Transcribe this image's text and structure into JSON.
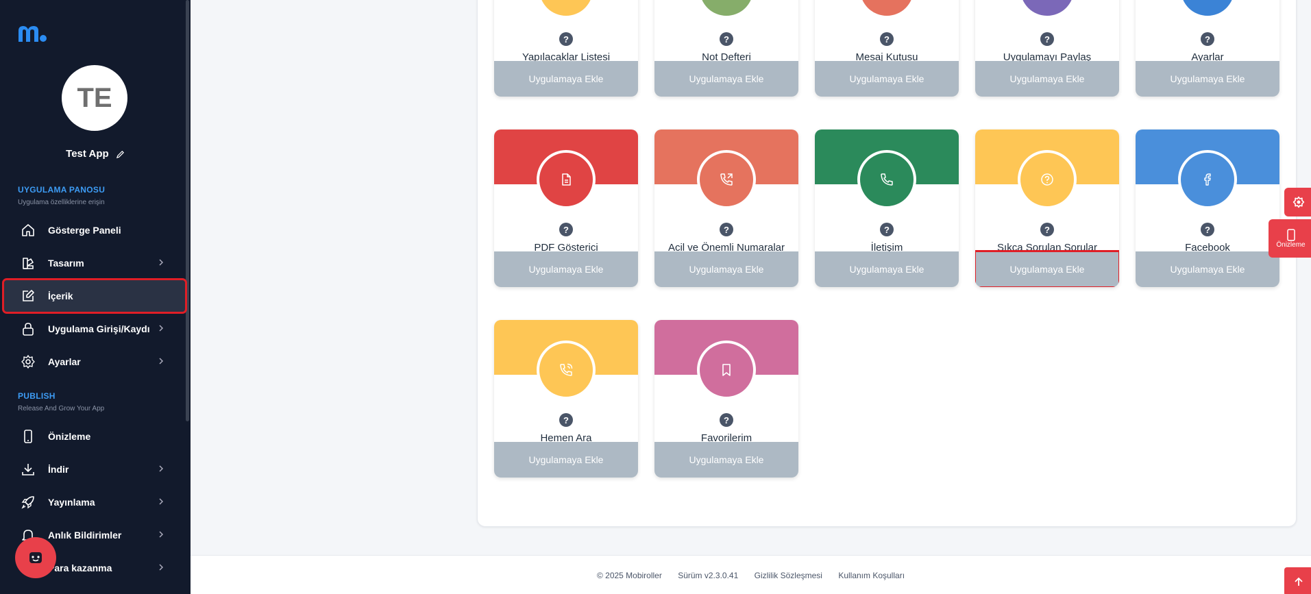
{
  "sidebar": {
    "avatar_initials": "TE",
    "app_name": "Test App",
    "section1": {
      "title": "UYGULAMA PANOSU",
      "subtitle": "Uygulama özelliklerine erişin"
    },
    "section2": {
      "title": "PUBLISH",
      "subtitle": "Release And Grow Your App"
    },
    "items": [
      {
        "label": "Gösterge Paneli",
        "icon": "home-icon",
        "chevron": false
      },
      {
        "label": "Tasarım",
        "icon": "design-icon",
        "chevron": true
      },
      {
        "label": "İçerik",
        "icon": "edit-icon",
        "chevron": false,
        "active": true
      },
      {
        "label": "Uygulama Girişi/Kaydı",
        "icon": "lock-icon",
        "chevron": true
      },
      {
        "label": "Ayarlar",
        "icon": "gear-icon",
        "chevron": true
      },
      {
        "label": "Önizleme",
        "icon": "phone-icon",
        "chevron": false
      },
      {
        "label": "İndir",
        "icon": "download-icon",
        "chevron": true
      },
      {
        "label": "Yayınlama",
        "icon": "rocket-icon",
        "chevron": true
      },
      {
        "label": "Anlık Bildirimler",
        "icon": "bell-icon",
        "chevron": true
      },
      {
        "label": "Para kazanma",
        "icon": "money-icon",
        "chevron": true
      }
    ]
  },
  "modules": {
    "add_label": "Uygulamaya Ekle",
    "help_mark": "?",
    "row1": [
      {
        "name": "Yapılacaklar Listesi",
        "color": "#fec655"
      },
      {
        "name": "Not Defteri",
        "color": "#86ad6a"
      },
      {
        "name": "Mesaj Kutusu",
        "color": "#e5725e"
      },
      {
        "name": "Uygulamayı Paylaş",
        "color": "#7b68b8"
      },
      {
        "name": "Ayarlar",
        "color": "#3b83d6"
      }
    ],
    "row2": [
      {
        "name": "PDF Gösterici",
        "color": "#e04444",
        "icon": "document-icon"
      },
      {
        "name": "Acil ve Önemli Numaralar",
        "color": "#e5735e",
        "icon": "phone-forward-icon"
      },
      {
        "name": "İletişim",
        "color": "#2b8a5b",
        "icon": "phone-icon"
      },
      {
        "name": "Sıkça Sorulan Sorular",
        "color": "#fec655",
        "icon": "question-icon"
      },
      {
        "name": "Facebook",
        "color": "#4a8fdb",
        "icon": "facebook-icon"
      }
    ],
    "row3": [
      {
        "name": "Hemen Ara",
        "color": "#fec655",
        "icon": "phone-call-icon"
      },
      {
        "name": "Favorilerim",
        "color": "#d06e9d",
        "icon": "bookmark-icon"
      }
    ]
  },
  "floating": {
    "preview_label": "Önizleme"
  },
  "footer": {
    "copyright": "© 2025 Mobiroller",
    "version": "Sürüm v2.3.0.41",
    "privacy": "Gizlilik Sözleşmesi",
    "terms": "Kullanım Koşulları"
  },
  "colors": {
    "sidebar_bg": "#121a2c",
    "accent_blue": "#3d9cf5",
    "accent_red": "#e8404a",
    "button_gray": "#adb9c4"
  }
}
